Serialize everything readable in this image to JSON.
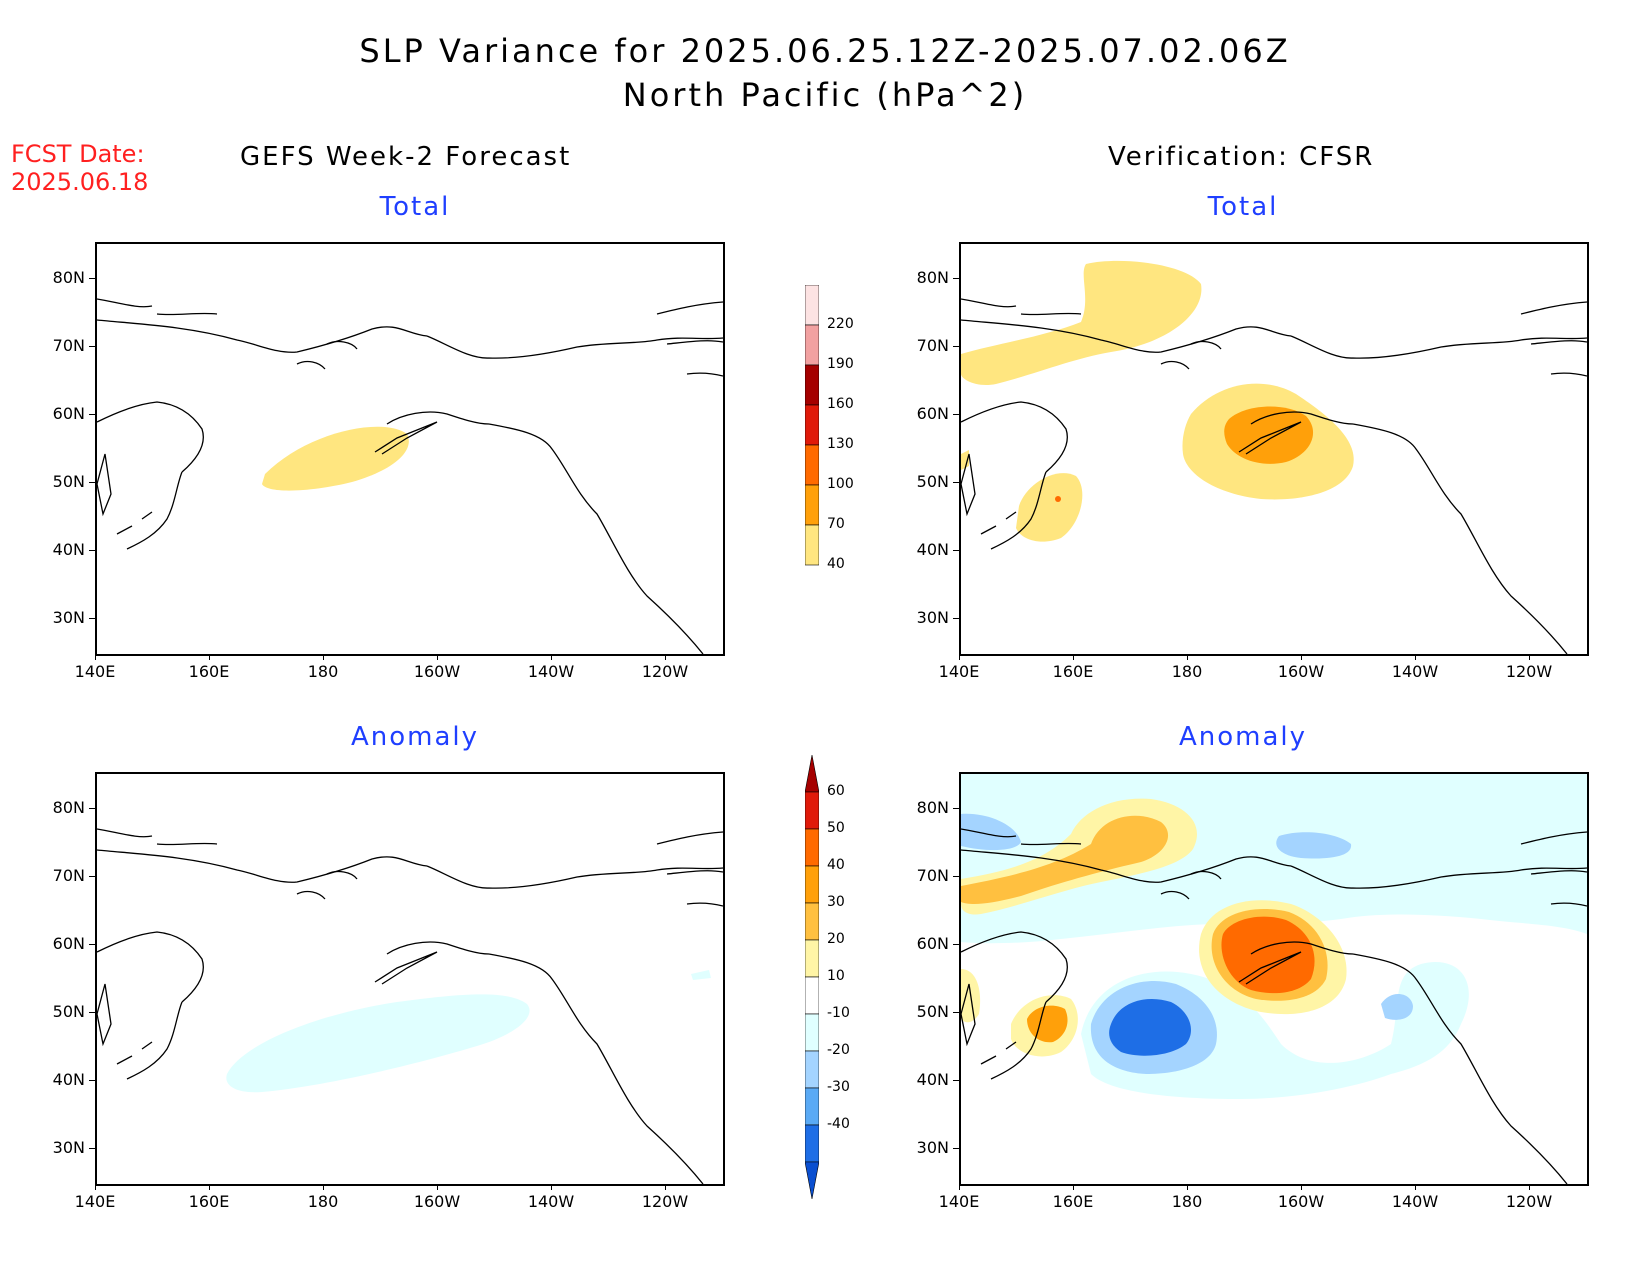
{
  "title": {
    "line1": "SLP Variance for 2025.06.25.12Z-2025.07.02.06Z",
    "line2": "North Pacific (hPa^2)"
  },
  "fcst_date": {
    "label": "FCST Date:",
    "value": "2025.06.18"
  },
  "columns": {
    "left": "GEFS Week-2 Forecast",
    "right": "Verification: CFSR"
  },
  "panels": {
    "total": "Total",
    "anomaly": "Anomaly"
  },
  "axes": {
    "y_ticks": [
      "80N",
      "70N",
      "60N",
      "50N",
      "40N",
      "30N"
    ],
    "x_ticks": [
      "140E",
      "160E",
      "180",
      "160W",
      "140W",
      "120W"
    ]
  },
  "colorbar_total": {
    "labels": [
      "220",
      "190",
      "160",
      "130",
      "100",
      "70",
      "40"
    ],
    "colors": [
      "#fde3e3",
      "#f2a1a1",
      "#a50000",
      "#e01a0a",
      "#ff6a00",
      "#ffa00a",
      "#ffe680"
    ]
  },
  "colorbar_anomaly": {
    "labels": [
      "60",
      "50",
      "40",
      "30",
      "20",
      "10",
      "-10",
      "-20",
      "-30",
      "-40"
    ],
    "colors": [
      "#a50000",
      "#e01a0a",
      "#ff6a00",
      "#ffa00a",
      "#ffc040",
      "#fff5a6",
      "#ffffff",
      "#e0ffff",
      "#a4d4ff",
      "#5aaaf5",
      "#1e6ee6",
      "#0a4fd0"
    ]
  }
}
